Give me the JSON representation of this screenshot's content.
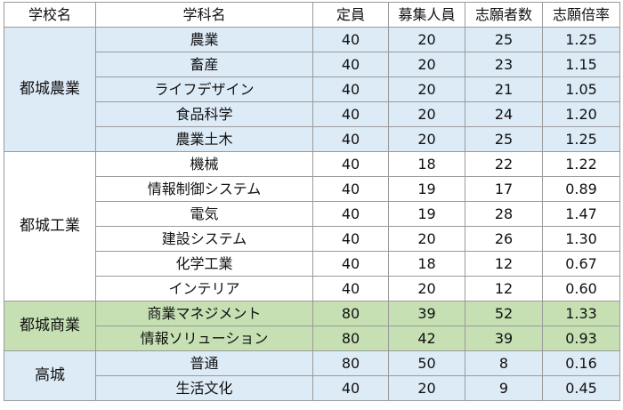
{
  "headers": [
    "学校名",
    "学科名",
    "定員",
    "募集人員",
    "志願者数",
    "志願倍率"
  ],
  "groups": [
    {
      "school": "都城農業",
      "theme": "blue",
      "rows": [
        {
          "dept": "農業",
          "capacity": "40",
          "recruit": "20",
          "applicants": "25",
          "ratio": "1.25"
        },
        {
          "dept": "畜産",
          "capacity": "40",
          "recruit": "20",
          "applicants": "23",
          "ratio": "1.15"
        },
        {
          "dept": "ライフデザイン",
          "capacity": "40",
          "recruit": "20",
          "applicants": "21",
          "ratio": "1.05"
        },
        {
          "dept": "食品科学",
          "capacity": "40",
          "recruit": "20",
          "applicants": "24",
          "ratio": "1.20"
        },
        {
          "dept": "農業土木",
          "capacity": "40",
          "recruit": "20",
          "applicants": "25",
          "ratio": "1.25"
        }
      ]
    },
    {
      "school": "都城工業",
      "theme": "white",
      "rows": [
        {
          "dept": "機械",
          "capacity": "40",
          "recruit": "18",
          "applicants": "22",
          "ratio": "1.22"
        },
        {
          "dept": "情報制御システム",
          "capacity": "40",
          "recruit": "19",
          "applicants": "17",
          "ratio": "0.89"
        },
        {
          "dept": "電気",
          "capacity": "40",
          "recruit": "19",
          "applicants": "28",
          "ratio": "1.47"
        },
        {
          "dept": "建設システム",
          "capacity": "40",
          "recruit": "20",
          "applicants": "26",
          "ratio": "1.30"
        },
        {
          "dept": "化学工業",
          "capacity": "40",
          "recruit": "18",
          "applicants": "12",
          "ratio": "0.67"
        },
        {
          "dept": "インテリア",
          "capacity": "40",
          "recruit": "20",
          "applicants": "12",
          "ratio": "0.60"
        }
      ]
    },
    {
      "school": "都城商業",
      "theme": "green",
      "rows": [
        {
          "dept": "商業マネジメント",
          "capacity": "80",
          "recruit": "39",
          "applicants": "52",
          "ratio": "1.33"
        },
        {
          "dept": "情報ソリューション",
          "capacity": "80",
          "recruit": "42",
          "applicants": "39",
          "ratio": "0.93"
        }
      ]
    },
    {
      "school": "高城",
      "theme": "blue",
      "rows": [
        {
          "dept": "普通",
          "capacity": "80",
          "recruit": "50",
          "applicants": "8",
          "ratio": "0.16"
        },
        {
          "dept": "生活文化",
          "capacity": "40",
          "recruit": "20",
          "applicants": "9",
          "ratio": "0.45"
        }
      ]
    }
  ],
  "colors": {
    "blue": "#ddebf7",
    "green": "#c6e0b4",
    "white": "#ffffff",
    "border": "#9a9a9a"
  }
}
